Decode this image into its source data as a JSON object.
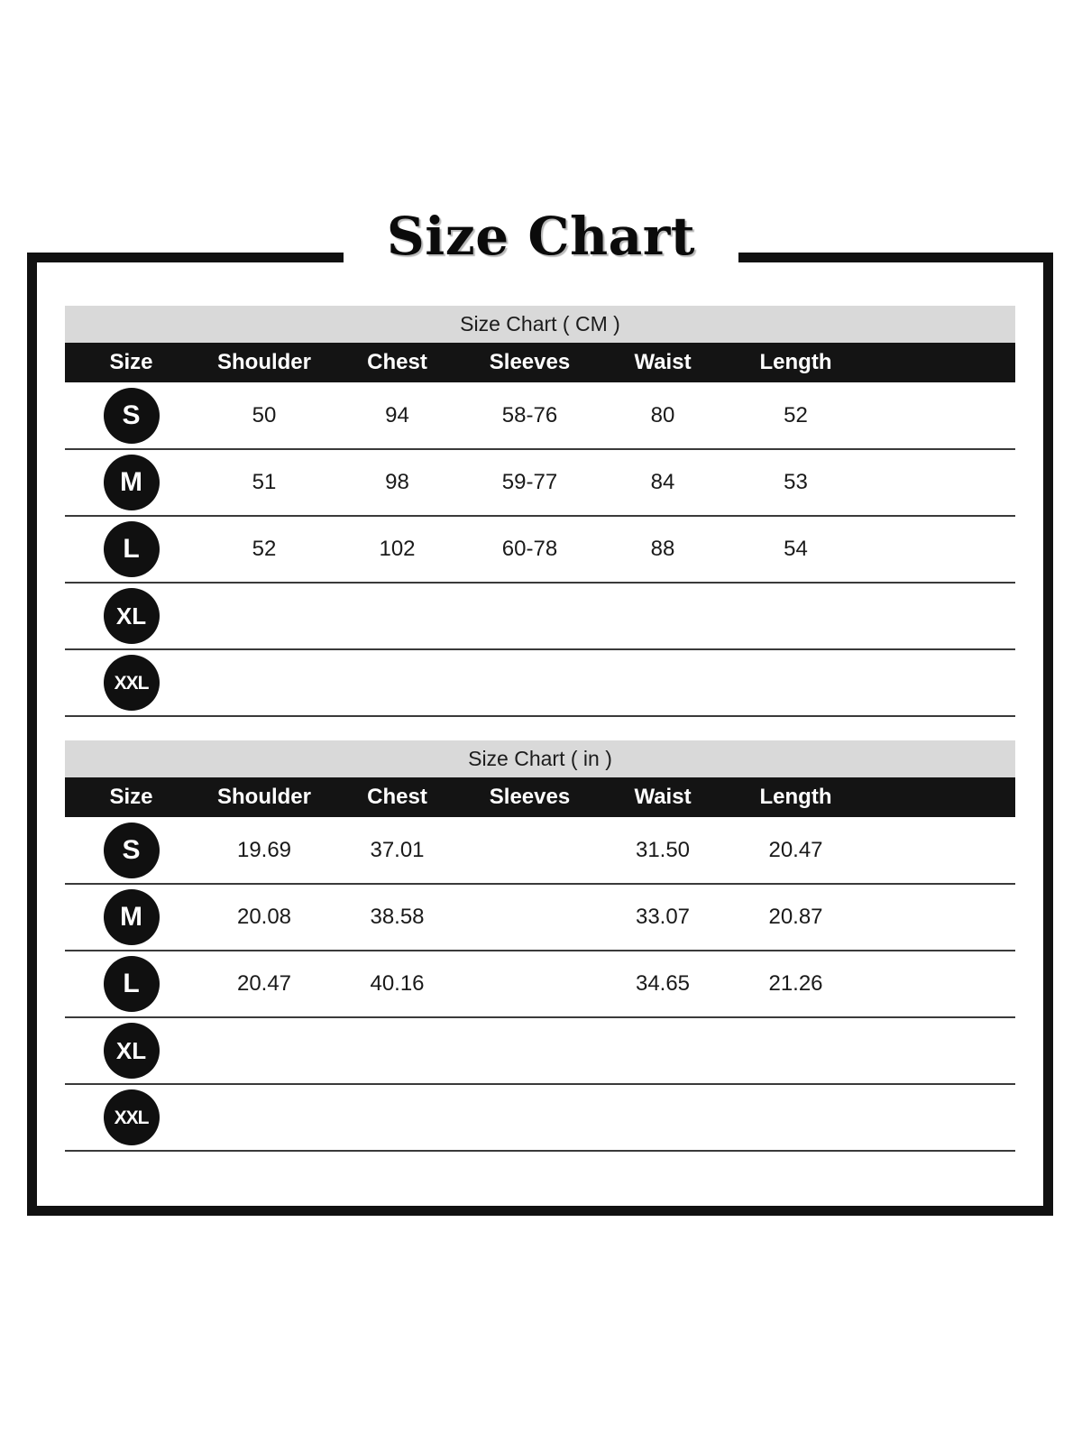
{
  "page": {
    "title": "Size Chart"
  },
  "colors": {
    "frame_border": "#111111",
    "caption_bg": "#d9d9d9",
    "header_bg": "#141414",
    "header_text": "#ffffff",
    "badge_bg": "#101010",
    "badge_text": "#ffffff",
    "body_text": "#1a1a1a"
  },
  "chart_data": [
    {
      "type": "table",
      "title": "Size Chart ( CM )",
      "columns": [
        "Size",
        "Shoulder",
        "Chest",
        "Sleeves",
        "Waist",
        "Length"
      ],
      "rows": [
        [
          "S",
          "50",
          "94",
          "58-76",
          "80",
          "52"
        ],
        [
          "M",
          "51",
          "98",
          "59-77",
          "84",
          "53"
        ],
        [
          "L",
          "52",
          "102",
          "60-78",
          "88",
          "54"
        ],
        [
          "XL",
          "",
          "",
          "",
          "",
          ""
        ],
        [
          "XXL",
          "",
          "",
          "",
          "",
          ""
        ]
      ]
    },
    {
      "type": "table",
      "title": "Size Chart ( in )",
      "columns": [
        "Size",
        "Shoulder",
        "Chest",
        "Sleeves",
        "Waist",
        "Length"
      ],
      "rows": [
        [
          "S",
          "19.69",
          "37.01",
          "",
          "31.50",
          "20.47"
        ],
        [
          "M",
          "20.08",
          "38.58",
          "",
          "33.07",
          "20.87"
        ],
        [
          "L",
          "20.47",
          "40.16",
          "",
          "34.65",
          "21.26"
        ],
        [
          "XL",
          "",
          "",
          "",
          "",
          ""
        ],
        [
          "XXL",
          "",
          "",
          "",
          "",
          ""
        ]
      ]
    }
  ]
}
